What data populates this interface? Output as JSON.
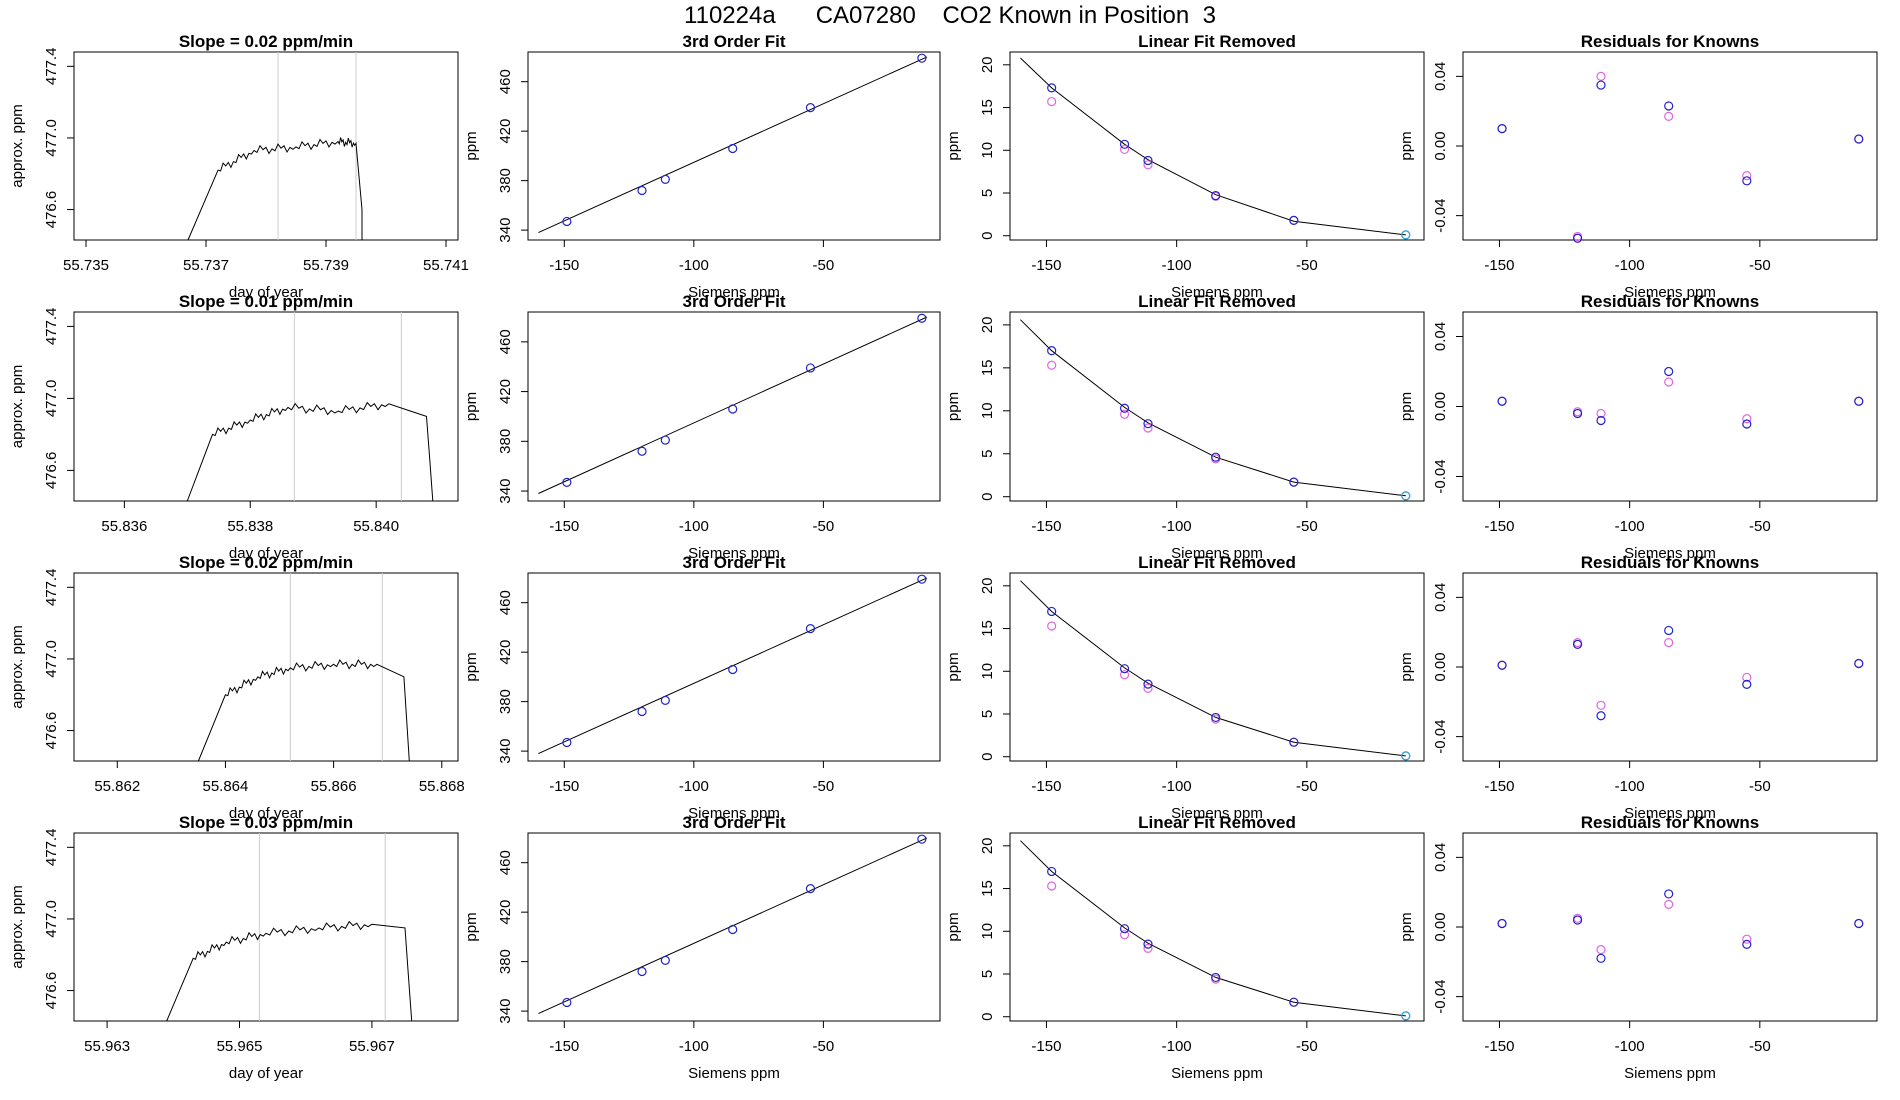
{
  "page": {
    "title": "110224a      CA07280    CO2 Known in Position  3"
  },
  "colors": {
    "trace": "#000000",
    "marker_line": "#cccccc",
    "point_blue": "#2222cc",
    "point_magenta": "#e066e0",
    "point_cyan": "#3aa0d8",
    "fit_curve": "#000000"
  },
  "chart_data": [
    {
      "row": 1,
      "type": "line",
      "title": "Slope =  0.02  ppm/min",
      "xlabel": "day of year",
      "ylabel": "approx. ppm",
      "xlim": [
        55.7348,
        55.7412
      ],
      "ylim": [
        476.43,
        477.48
      ],
      "xticks": [
        "55.735",
        "55.737",
        "55.739",
        "55.741"
      ],
      "xtick_values": [
        55.735,
        55.737,
        55.739,
        55.741
      ],
      "yticks": [
        "476.6",
        "477.0",
        "477.4"
      ],
      "ytick_values": [
        476.6,
        477.0,
        477.4
      ],
      "marker_lines_x": [
        55.7382,
        55.7395
      ],
      "series": [
        {
          "x": [
            55.7367,
            55.7372,
            55.7378,
            55.7385,
            55.7392,
            55.7395,
            55.7396,
            55.7396
          ],
          "y": [
            476.43,
            476.82,
            476.93,
            476.95,
            476.98,
            476.97,
            476.6,
            476.43
          ]
        }
      ]
    },
    {
      "row": 1,
      "type": "scatter",
      "title": "3rd Order Fit",
      "xlabel": "Siemens ppm",
      "ylabel": "ppm",
      "xlim": [
        -164,
        -5
      ],
      "ylim": [
        332,
        484
      ],
      "xticks": [
        "-150",
        "-100",
        "-50"
      ],
      "xtick_values": [
        -150,
        -100,
        -50
      ],
      "yticks": [
        "340",
        "380",
        "420",
        "460"
      ],
      "ytick_values": [
        340,
        380,
        420,
        460
      ],
      "fit_x": [
        -160,
        -10
      ],
      "fit_y": [
        338,
        480
      ],
      "points": {
        "x": [
          -149,
          -120,
          -111,
          -85,
          -55,
          -12
        ],
        "y": [
          347,
          372,
          381,
          406,
          439,
          479
        ]
      }
    },
    {
      "row": 1,
      "type": "scatter",
      "title": "Linear Fit Removed",
      "xlabel": "Siemens ppm",
      "ylabel": "ppm",
      "xlim": [
        -164,
        -5
      ],
      "ylim": [
        -0.5,
        21.5
      ],
      "xticks": [
        "-150",
        "-100",
        "-50"
      ],
      "xtick_values": [
        -150,
        -100,
        -50
      ],
      "yticks": [
        "0",
        "5",
        "10",
        "15",
        "20"
      ],
      "ytick_values": [
        0,
        5,
        10,
        15,
        20
      ],
      "fit_x": [
        -160,
        -148,
        -120,
        -111,
        -85,
        -55,
        -12
      ],
      "fit_y": [
        20.8,
        17.3,
        10.7,
        8.9,
        4.8,
        1.7,
        0.1
      ],
      "points_blue": {
        "x": [
          -148,
          -120,
          -111,
          -85,
          -55,
          -12
        ],
        "y": [
          17.3,
          10.7,
          8.8,
          4.7,
          1.8,
          0.1
        ]
      },
      "points_magenta": {
        "x": [
          -148,
          -120,
          -111,
          -85,
          -55,
          -12
        ],
        "y": [
          15.7,
          10.1,
          8.3,
          4.6,
          1.8,
          0.1
        ]
      }
    },
    {
      "row": 1,
      "type": "scatter",
      "title": "Residuals for Knowns",
      "xlabel": "Siemens ppm",
      "ylabel": "ppm",
      "xlim": [
        -164,
        -5
      ],
      "ylim": [
        -0.054,
        0.054
      ],
      "xticks": [
        "-150",
        "-100",
        "-50"
      ],
      "xtick_values": [
        -150,
        -100,
        -50
      ],
      "yticks": [
        "-0.04",
        "0.00",
        "0.04"
      ],
      "ytick_values": [
        -0.04,
        0.0,
        0.04
      ],
      "points_blue": {
        "x": [
          -149,
          -120,
          -111,
          -85,
          -55,
          -12
        ],
        "y": [
          0.01,
          -0.053,
          0.035,
          0.023,
          -0.02,
          0.004
        ]
      },
      "points_magenta": {
        "x": [
          -149,
          -120,
          -111,
          -85,
          -55,
          -12
        ],
        "y": [
          0.01,
          -0.052,
          0.04,
          0.017,
          -0.017,
          0.004
        ]
      }
    },
    {
      "row": 2,
      "type": "line",
      "title": "Slope =  0.01  ppm/min",
      "xlabel": "day of year",
      "ylabel": "approx. ppm",
      "xlim": [
        55.8352,
        55.8413
      ],
      "ylim": [
        476.43,
        477.48
      ],
      "xticks": [
        "55.836",
        "55.838",
        "55.840"
      ],
      "xtick_values": [
        55.836,
        55.838,
        55.84
      ],
      "yticks": [
        "476.6",
        "477.0",
        "477.4"
      ],
      "ytick_values": [
        476.6,
        477.0,
        477.4
      ],
      "marker_lines_x": [
        55.8387,
        55.8404
      ],
      "series": [
        {
          "x": [
            55.837,
            55.8374,
            55.838,
            55.8386,
            55.8394,
            55.8402,
            55.8408,
            55.8409
          ],
          "y": [
            476.43,
            476.8,
            476.88,
            476.95,
            476.93,
            476.97,
            476.9,
            476.43
          ]
        }
      ]
    },
    {
      "row": 2,
      "type": "scatter",
      "title": "3rd Order Fit",
      "xlabel": "Siemens ppm",
      "ylabel": "ppm",
      "xlim": [
        -164,
        -5
      ],
      "ylim": [
        332,
        484
      ],
      "xticks": [
        "-150",
        "-100",
        "-50"
      ],
      "xtick_values": [
        -150,
        -100,
        -50
      ],
      "yticks": [
        "340",
        "380",
        "420",
        "460"
      ],
      "ytick_values": [
        340,
        380,
        420,
        460
      ],
      "fit_x": [
        -160,
        -10
      ],
      "fit_y": [
        338,
        480
      ],
      "points": {
        "x": [
          -149,
          -120,
          -111,
          -85,
          -55,
          -12
        ],
        "y": [
          347,
          372,
          381,
          406,
          439,
          479
        ]
      }
    },
    {
      "row": 2,
      "type": "scatter",
      "title": "Linear Fit Removed",
      "xlabel": "Siemens ppm",
      "ylabel": "ppm",
      "xlim": [
        -164,
        -5
      ],
      "ylim": [
        -0.5,
        21.5
      ],
      "xticks": [
        "-150",
        "-100",
        "-50"
      ],
      "xtick_values": [
        -150,
        -100,
        -50
      ],
      "yticks": [
        "0",
        "5",
        "10",
        "15",
        "20"
      ],
      "ytick_values": [
        0,
        5,
        10,
        15,
        20
      ],
      "fit_x": [
        -160,
        -148,
        -120,
        -111,
        -85,
        -55,
        -12
      ],
      "fit_y": [
        20.6,
        17.0,
        10.4,
        8.6,
        4.6,
        1.7,
        0.1
      ],
      "points_blue": {
        "x": [
          -148,
          -120,
          -111,
          -85,
          -55,
          -12
        ],
        "y": [
          17.0,
          10.3,
          8.5,
          4.6,
          1.7,
          0.1
        ]
      },
      "points_magenta": {
        "x": [
          -148,
          -120,
          -111,
          -85,
          -55,
          -12
        ],
        "y": [
          15.3,
          9.6,
          8.0,
          4.4,
          1.7,
          0.1
        ]
      }
    },
    {
      "row": 2,
      "type": "scatter",
      "title": "Residuals for Knowns",
      "xlabel": "Siemens ppm",
      "ylabel": "ppm",
      "xlim": [
        -164,
        -5
      ],
      "ylim": [
        -0.054,
        0.054
      ],
      "xticks": [
        "-150",
        "-100",
        "-50"
      ],
      "xtick_values": [
        -150,
        -100,
        -50
      ],
      "yticks": [
        "-0.04",
        "0.00",
        "0.04"
      ],
      "ytick_values": [
        -0.04,
        0.0,
        0.04
      ],
      "points_blue": {
        "x": [
          -149,
          -120,
          -111,
          -85,
          -55,
          -12
        ],
        "y": [
          0.003,
          -0.004,
          -0.008,
          0.02,
          -0.01,
          0.003
        ]
      },
      "points_magenta": {
        "x": [
          -149,
          -120,
          -111,
          -85,
          -55,
          -12
        ],
        "y": [
          0.003,
          -0.003,
          -0.004,
          0.014,
          -0.007,
          0.003
        ]
      }
    },
    {
      "row": 3,
      "type": "line",
      "title": "Slope =  0.02  ppm/min",
      "xlabel": "day of year",
      "ylabel": "approx. ppm",
      "xlim": [
        55.8612,
        55.8683
      ],
      "ylim": [
        476.43,
        477.48
      ],
      "xticks": [
        "55.862",
        "55.864",
        "55.866",
        "55.868"
      ],
      "xtick_values": [
        55.862,
        55.864,
        55.866,
        55.868
      ],
      "yticks": [
        "476.6",
        "477.0",
        "477.4"
      ],
      "ytick_values": [
        476.6,
        477.0,
        477.4
      ],
      "marker_lines_x": [
        55.8652,
        55.8669
      ],
      "series": [
        {
          "x": [
            55.8635,
            55.864,
            55.8646,
            55.8652,
            55.866,
            55.8668,
            55.8673,
            55.8674
          ],
          "y": [
            476.43,
            476.8,
            476.9,
            476.95,
            476.97,
            476.97,
            476.9,
            476.43
          ]
        }
      ]
    },
    {
      "row": 3,
      "type": "scatter",
      "title": "3rd Order Fit",
      "xlabel": "Siemens ppm",
      "ylabel": "ppm",
      "xlim": [
        -164,
        -5
      ],
      "ylim": [
        332,
        484
      ],
      "xticks": [
        "-150",
        "-100",
        "-50"
      ],
      "xtick_values": [
        -150,
        -100,
        -50
      ],
      "yticks": [
        "340",
        "380",
        "420",
        "460"
      ],
      "ytick_values": [
        340,
        380,
        420,
        460
      ],
      "fit_x": [
        -160,
        -10
      ],
      "fit_y": [
        338,
        480
      ],
      "points": {
        "x": [
          -149,
          -120,
          -111,
          -85,
          -55,
          -12
        ],
        "y": [
          347,
          372,
          381,
          406,
          439,
          479
        ]
      }
    },
    {
      "row": 3,
      "type": "scatter",
      "title": "Linear Fit Removed",
      "xlabel": "Siemens ppm",
      "ylabel": "ppm",
      "xlim": [
        -164,
        -5
      ],
      "ylim": [
        -0.5,
        21.5
      ],
      "xticks": [
        "-150",
        "-100",
        "-50"
      ],
      "xtick_values": [
        -150,
        -100,
        -50
      ],
      "yticks": [
        "0",
        "5",
        "10",
        "15",
        "20"
      ],
      "ytick_values": [
        0,
        5,
        10,
        15,
        20
      ],
      "fit_x": [
        -160,
        -148,
        -120,
        -111,
        -85,
        -55,
        -12
      ],
      "fit_y": [
        20.6,
        17.0,
        10.4,
        8.6,
        4.6,
        1.7,
        0.1
      ],
      "points_blue": {
        "x": [
          -148,
          -120,
          -111,
          -85,
          -55,
          -12
        ],
        "y": [
          17.0,
          10.3,
          8.5,
          4.6,
          1.7,
          0.1
        ]
      },
      "points_magenta": {
        "x": [
          -148,
          -120,
          -111,
          -85,
          -55,
          -12
        ],
        "y": [
          15.3,
          9.6,
          8.0,
          4.4,
          1.7,
          0.1
        ]
      }
    },
    {
      "row": 3,
      "type": "scatter",
      "title": "Residuals for Knowns",
      "xlabel": "Siemens ppm",
      "ylabel": "ppm",
      "xlim": [
        -164,
        -5
      ],
      "ylim": [
        -0.054,
        0.054
      ],
      "xticks": [
        "-150",
        "-100",
        "-50"
      ],
      "xtick_values": [
        -150,
        -100,
        -50
      ],
      "yticks": [
        "-0.04",
        "0.00",
        "0.04"
      ],
      "ytick_values": [
        -0.04,
        0.0,
        0.04
      ],
      "points_blue": {
        "x": [
          -149,
          -120,
          -111,
          -85,
          -55,
          -12
        ],
        "y": [
          0.001,
          0.013,
          -0.028,
          0.021,
          -0.01,
          0.002
        ]
      },
      "points_magenta": {
        "x": [
          -149,
          -120,
          -111,
          -85,
          -55,
          -12
        ],
        "y": [
          0.001,
          0.014,
          -0.022,
          0.014,
          -0.006,
          0.002
        ]
      }
    },
    {
      "row": 4,
      "type": "line",
      "title": "Slope =  0.03  ppm/min",
      "xlabel": "day of year",
      "ylabel": "approx. ppm",
      "xlim": [
        55.9625,
        55.9683
      ],
      "ylim": [
        476.43,
        477.48
      ],
      "xticks": [
        "55.963",
        "55.965",
        "55.967"
      ],
      "xtick_values": [
        55.963,
        55.965,
        55.967
      ],
      "yticks": [
        "476.6",
        "477.0",
        "477.4"
      ],
      "ytick_values": [
        476.6,
        477.0,
        477.4
      ],
      "marker_lines_x": [
        55.9653,
        55.9672
      ],
      "series": [
        {
          "x": [
            55.9639,
            55.9643,
            55.9648,
            55.9654,
            55.9662,
            55.967,
            55.9675,
            55.9676
          ],
          "y": [
            476.43,
            476.78,
            476.87,
            476.92,
            476.95,
            476.97,
            476.95,
            476.43
          ]
        }
      ]
    },
    {
      "row": 4,
      "type": "scatter",
      "title": "3rd Order Fit",
      "xlabel": "Siemens ppm",
      "ylabel": "ppm",
      "xlim": [
        -164,
        -5
      ],
      "ylim": [
        332,
        484
      ],
      "xticks": [
        "-150",
        "-100",
        "-50"
      ],
      "xtick_values": [
        -150,
        -100,
        -50
      ],
      "yticks": [
        "340",
        "380",
        "420",
        "460"
      ],
      "ytick_values": [
        340,
        380,
        420,
        460
      ],
      "fit_x": [
        -160,
        -10
      ],
      "fit_y": [
        338,
        480
      ],
      "points": {
        "x": [
          -149,
          -120,
          -111,
          -85,
          -55,
          -12
        ],
        "y": [
          347,
          372,
          381,
          406,
          439,
          479
        ]
      }
    },
    {
      "row": 4,
      "type": "scatter",
      "title": "Linear Fit Removed",
      "xlabel": "Siemens ppm",
      "ylabel": "ppm",
      "xlim": [
        -164,
        -5
      ],
      "ylim": [
        -0.5,
        21.5
      ],
      "xticks": [
        "-150",
        "-100",
        "-50"
      ],
      "xtick_values": [
        -150,
        -100,
        -50
      ],
      "yticks": [
        "0",
        "5",
        "10",
        "15",
        "20"
      ],
      "ytick_values": [
        0,
        5,
        10,
        15,
        20
      ],
      "fit_x": [
        -160,
        -148,
        -120,
        -111,
        -85,
        -55,
        -12
      ],
      "fit_y": [
        20.6,
        17.0,
        10.4,
        8.6,
        4.6,
        1.7,
        0.1
      ],
      "points_blue": {
        "x": [
          -148,
          -120,
          -111,
          -85,
          -55,
          -12
        ],
        "y": [
          17.0,
          10.3,
          8.5,
          4.6,
          1.7,
          0.1
        ]
      },
      "points_magenta": {
        "x": [
          -148,
          -120,
          -111,
          -85,
          -55,
          -12
        ],
        "y": [
          15.3,
          9.6,
          8.0,
          4.4,
          1.7,
          0.1
        ]
      }
    },
    {
      "row": 4,
      "type": "scatter",
      "title": "Residuals for Knowns",
      "xlabel": "Siemens ppm",
      "ylabel": "ppm",
      "xlim": [
        -164,
        -5
      ],
      "ylim": [
        -0.054,
        0.054
      ],
      "xticks": [
        "-150",
        "-100",
        "-50"
      ],
      "xtick_values": [
        -150,
        -100,
        -50
      ],
      "yticks": [
        "-0.04",
        "0.00",
        "0.04"
      ],
      "ytick_values": [
        -0.04,
        0.0,
        0.04
      ],
      "points_blue": {
        "x": [
          -149,
          -120,
          -111,
          -85,
          -55,
          -12
        ],
        "y": [
          0.002,
          0.004,
          -0.018,
          0.019,
          -0.01,
          0.002
        ]
      },
      "points_magenta": {
        "x": [
          -149,
          -120,
          -111,
          -85,
          -55,
          -12
        ],
        "y": [
          0.002,
          0.005,
          -0.013,
          0.013,
          -0.007,
          0.002
        ]
      }
    }
  ]
}
